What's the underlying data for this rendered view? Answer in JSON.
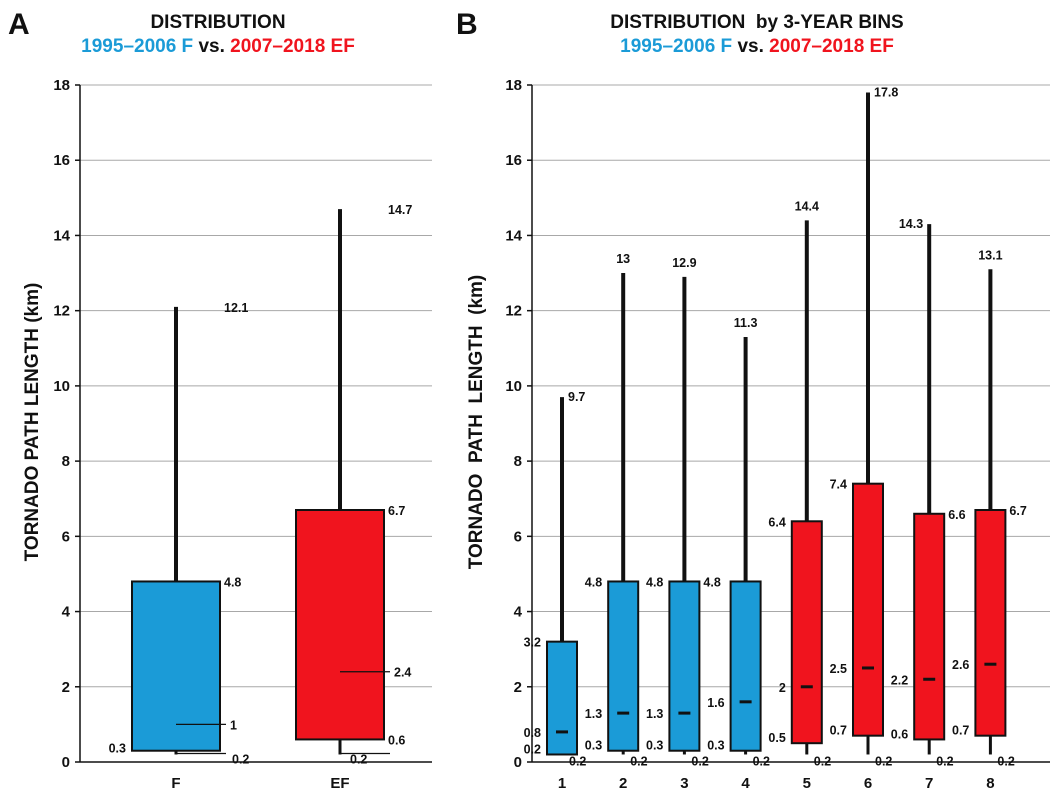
{
  "colors": {
    "f": "#1b9bd7",
    "ef": "#f0141e",
    "text": "#111111",
    "grid": "#a8a8a8"
  },
  "chart_data": [
    {
      "type": "box",
      "panel_label": "A",
      "title": "DISTRIBUTION",
      "subtitle_parts": [
        {
          "text": "1995–2006 F",
          "color": "#1b9bd7"
        },
        {
          "text": " vs. ",
          "color": "#111111"
        },
        {
          "text": "2007–2018 EF",
          "color": "#f0141e"
        }
      ],
      "ylabel": "TORNADO PATH LENGTH (km)",
      "xlabel": "",
      "ylim": [
        0,
        18
      ],
      "yticks": [
        0,
        2,
        4,
        6,
        8,
        10,
        12,
        14,
        16,
        18
      ],
      "grid": true,
      "categories": [
        "F",
        "EF"
      ],
      "boxes": [
        {
          "category": "F",
          "color": "#1b9bd7",
          "min": 0.2,
          "q1": 0.3,
          "median": 1,
          "q3": 4.8,
          "max": 12.1,
          "labels": {
            "min": "0.2",
            "q1": "0.3",
            "median": "1",
            "q3": "4.8",
            "max": "12.1"
          }
        },
        {
          "category": "EF",
          "color": "#f0141e",
          "min": 0.2,
          "q1": 0.6,
          "median": 2.4,
          "q3": 6.7,
          "max": 14.7,
          "labels": {
            "min": "0.2",
            "q1": "0.6",
            "median": "2.4",
            "q3": "6.7",
            "max": "14.7"
          }
        }
      ]
    },
    {
      "type": "box",
      "panel_label": "B",
      "title": "DISTRIBUTION  by 3-YEAR BINS",
      "subtitle_parts": [
        {
          "text": "1995–2006 F",
          "color": "#1b9bd7"
        },
        {
          "text": " vs. ",
          "color": "#111111"
        },
        {
          "text": "2007–2018 EF",
          "color": "#f0141e"
        }
      ],
      "ylabel": "TORNADO  PATH  LENGTH  (km)",
      "xlabel": "",
      "ylim": [
        0,
        18
      ],
      "yticks": [
        0,
        2,
        4,
        6,
        8,
        10,
        12,
        14,
        16,
        18
      ],
      "grid": true,
      "categories": [
        "1",
        "2",
        "3",
        "4",
        "5",
        "6",
        "7",
        "8"
      ],
      "boxes": [
        {
          "category": "1",
          "color": "#1b9bd7",
          "min": 0.2,
          "q1": 0.2,
          "median": 0.8,
          "q3": 3.2,
          "max": 9.7,
          "labels": {
            "min": "0.2",
            "q1": "0.2",
            "median": "0.8",
            "q3": "3.2",
            "max": "9.7"
          }
        },
        {
          "category": "2",
          "color": "#1b9bd7",
          "min": 0.2,
          "q1": 0.3,
          "median": 1.3,
          "q3": 4.8,
          "max": 13,
          "labels": {
            "min": "0.2",
            "q1": "0.3",
            "median": "1.3",
            "q3": "4.8",
            "max": "13"
          }
        },
        {
          "category": "3",
          "color": "#1b9bd7",
          "min": 0.2,
          "q1": 0.3,
          "median": 1.3,
          "q3": 4.8,
          "max": 12.9,
          "labels": {
            "min": "0.2",
            "q1": "0.3",
            "median": "1.3",
            "q3": "4.8",
            "max": "12.9",
            "q3_right": "4.8"
          }
        },
        {
          "category": "4",
          "color": "#1b9bd7",
          "min": 0.2,
          "q1": 0.3,
          "median": 1.6,
          "q3": 4.8,
          "max": 11.3,
          "labels": {
            "min": "0.2",
            "q1": "0.3",
            "median": "1.6",
            "q3": "",
            "max": "11.3"
          }
        },
        {
          "category": "5",
          "color": "#f0141e",
          "min": 0.2,
          "q1": 0.5,
          "median": 2,
          "q3": 6.4,
          "max": 14.4,
          "labels": {
            "min": "0.2",
            "q1": "0.5",
            "median": "2",
            "q3": "6.4",
            "max": "14.4"
          }
        },
        {
          "category": "6",
          "color": "#f0141e",
          "min": 0.2,
          "q1": 0.7,
          "median": 2.5,
          "q3": 7.4,
          "max": 17.8,
          "labels": {
            "min": "0.2",
            "q1": "0.7",
            "median": "2.5",
            "q3": "7.4",
            "max": "17.8"
          }
        },
        {
          "category": "7",
          "color": "#f0141e",
          "min": 0.2,
          "q1": 0.6,
          "median": 2.2,
          "q3": 6.6,
          "max": 14.3,
          "labels": {
            "min": "0.2",
            "q1": "0.6",
            "median": "2.2",
            "q3": "6.6",
            "max": "14.3"
          }
        },
        {
          "category": "8",
          "color": "#f0141e",
          "min": 0.2,
          "q1": 0.7,
          "median": 2.6,
          "q3": 6.7,
          "max": 13.1,
          "labels": {
            "min": "0.2",
            "q1": "0.7",
            "median": "2.6",
            "q3": "6.7",
            "max": "13.1"
          }
        }
      ]
    }
  ]
}
